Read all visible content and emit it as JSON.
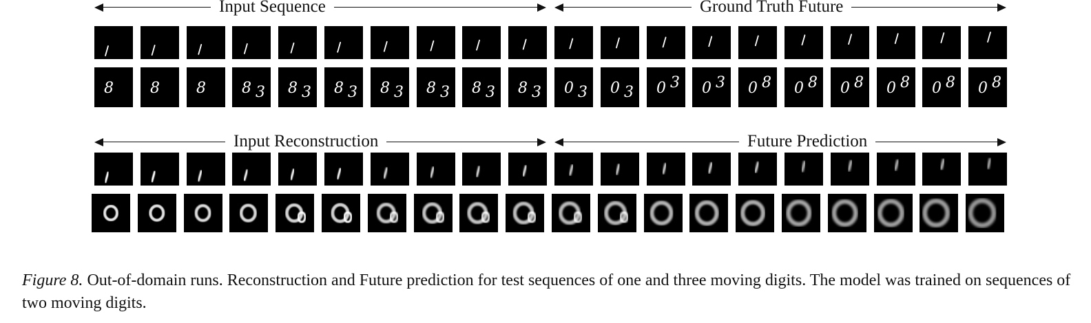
{
  "header_labels": {
    "input_sequence": "Input Sequence",
    "ground_truth_future": "Ground Truth Future",
    "input_reconstruction": "Input Reconstruction",
    "future_prediction": "Future Prediction"
  },
  "rows": {
    "one_digit_truth": {
      "content": "1",
      "frames": 20
    },
    "three_digit_truth": {
      "frames": 20,
      "frame_text": [
        "8",
        "8",
        "8",
        "8 3",
        "8 3",
        "8 3",
        "8 3",
        "8 3",
        "8 3",
        "8 3",
        "0 3",
        "0 3",
        "0 3",
        "0 3",
        "0 8",
        "0 8",
        "0 8",
        "0 8",
        "0 8",
        "0 8"
      ]
    },
    "one_digit_prediction": {
      "frames": 20
    },
    "three_digit_prediction": {
      "frames": 20
    }
  },
  "caption": {
    "figure_label": "Figure 8.",
    "text": "Out-of-domain runs. Reconstruction and Future prediction for test sequences of one and three moving digits. The model was trained on sequences of two moving digits."
  },
  "colors": {
    "frame_bg": "#000000",
    "digit": "#ffffff",
    "text": "#111111"
  }
}
